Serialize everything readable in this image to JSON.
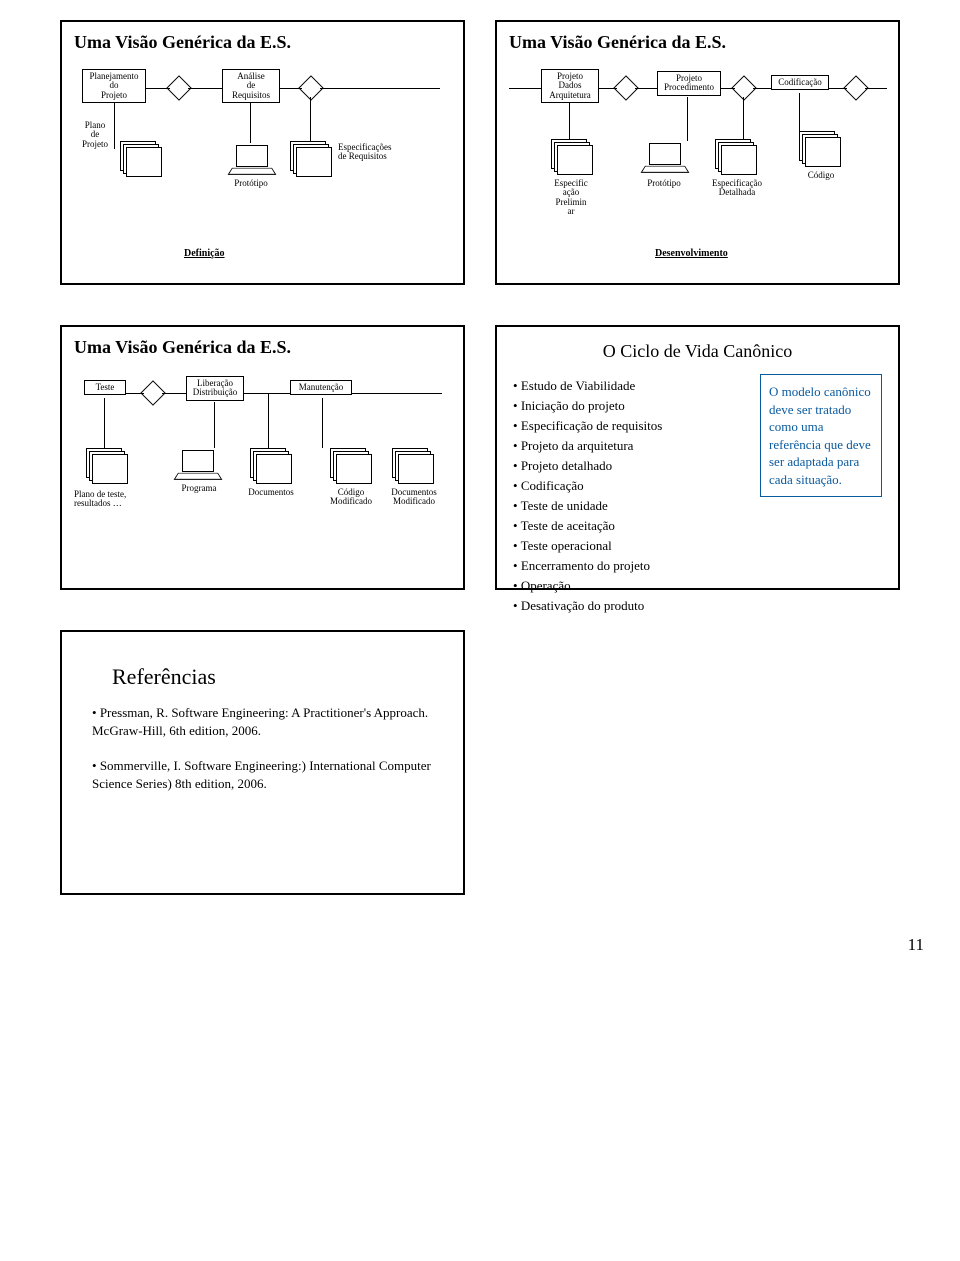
{
  "page_number": "11",
  "heading": "Uma Visão Genérica da E.S.",
  "diagram_definition": {
    "proc1": "Planejamento\ndo\nProjeto",
    "proc2": "Análise\nde\nRequisitos",
    "out1": "Plano\nde\nProjeto",
    "out2": "Protótipo",
    "out3": "Especificações\nde Requisitos",
    "phase": "Definição"
  },
  "diagram_development": {
    "proc1": "Projeto\nDados\nArquitetura",
    "proc2": "Projeto\nProcedimento",
    "proc3": "Codificação",
    "out1": "Especific\nação\nPrelimin\nar",
    "out2": "Protótipo",
    "out3": "Especificação\nDetalhada",
    "out4": "Código",
    "phase": "Desenvolvimento"
  },
  "diagram_maintenance": {
    "proc1": "Teste",
    "proc2": "Liberação\nDistribuição",
    "proc3": "Manutenção",
    "out1": "Plano de teste,\nresultados …",
    "out2": "Programa",
    "out3": "Documentos",
    "out4": "Código\nModificado",
    "out5": "Documentos\nModificado"
  },
  "lifecycle": {
    "title": "O Ciclo de Vida Canônico",
    "items": [
      "Estudo de Viabilidade",
      "Iniciação do projeto",
      "Especificação de requisitos",
      "Projeto da arquitetura",
      "Projeto detalhado",
      "Codificação",
      "Teste de unidade",
      "Teste de aceitação",
      "Teste operacional",
      "Encerramento do projeto",
      "Operação",
      "Desativação do produto"
    ],
    "note": "O modelo canônico deve ser tratado como uma referência que deve ser adaptada para cada situação.",
    "note_color": "#0a5a9e"
  },
  "references": {
    "title": "Referências",
    "items": [
      "Pressman, R. Software Engineering: A Practitioner's Approach. McGraw-Hill, 6th  edition, 2006.",
      "Sommerville, I. Software Engineering:) International Computer Science Series) 8th edition, 2006."
    ]
  }
}
